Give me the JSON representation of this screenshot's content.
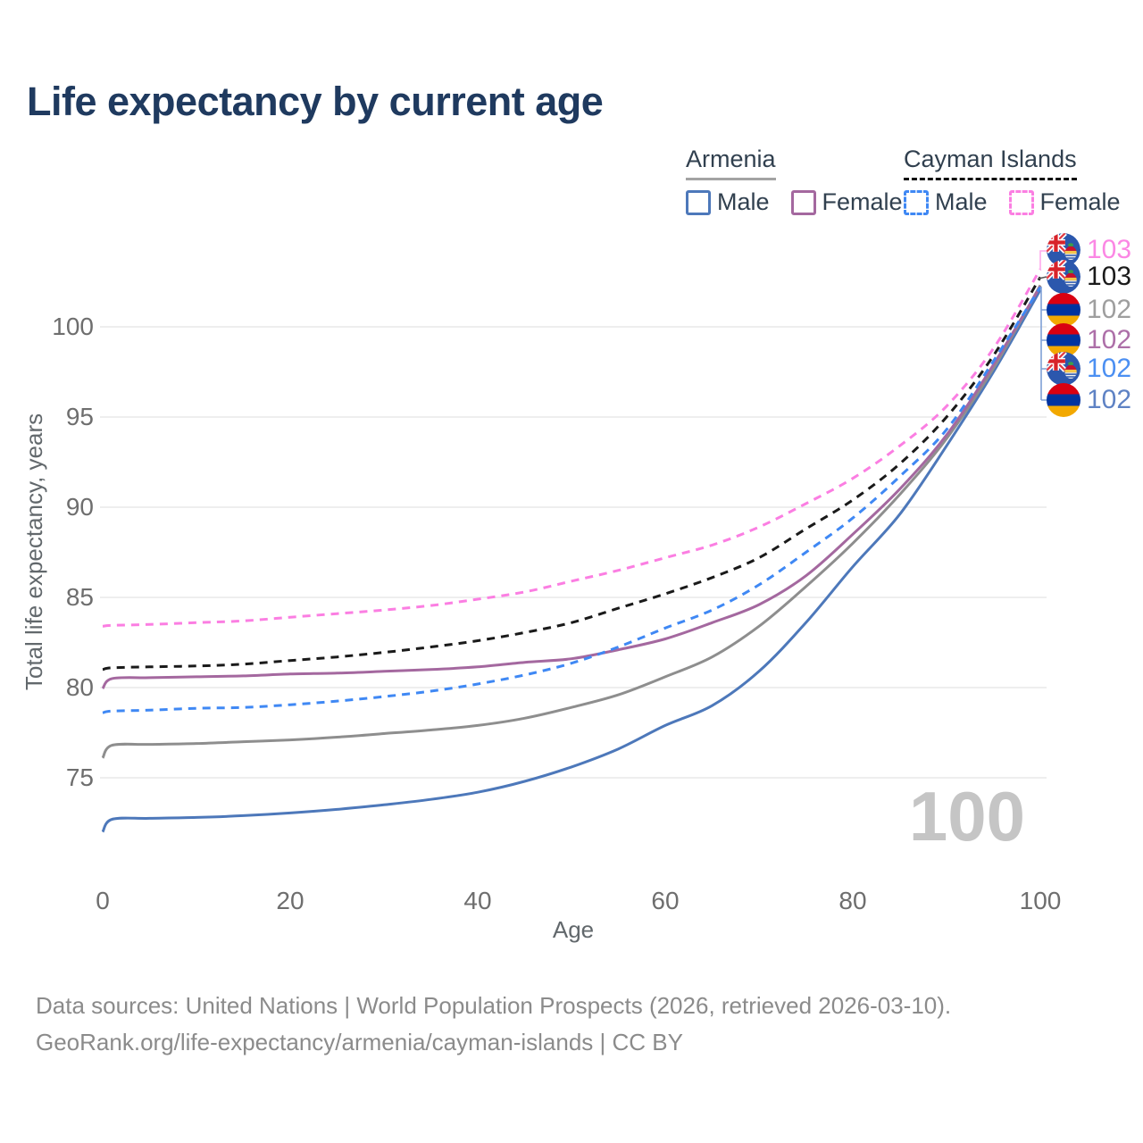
{
  "title": "Life expectancy by current age",
  "legend": {
    "groups": [
      {
        "name": "Armenia",
        "line_style": "solid",
        "underline_color": "#a3a3a3",
        "items": [
          {
            "label": "Male",
            "color": "#4d78ba",
            "dashed": false
          },
          {
            "label": "Female",
            "color": "#a4689f",
            "dashed": false
          }
        ]
      },
      {
        "name": "Cayman Islands",
        "line_style": "dashed",
        "underline_color": "#111111",
        "items": [
          {
            "label": "Male",
            "color": "#3f88f4",
            "dashed": true
          },
          {
            "label": "Female",
            "color": "#fb7ee2",
            "dashed": true
          }
        ]
      }
    ]
  },
  "chart_data": {
    "type": "line",
    "title": "Life expectancy by current age",
    "xlabel": "Age",
    "ylabel": "Total life expectancy, years",
    "x_ticks": [
      0,
      20,
      40,
      60,
      80,
      100
    ],
    "y_ticks": [
      75,
      80,
      85,
      90,
      95,
      100
    ],
    "xlim": [
      0,
      100
    ],
    "ylim": [
      75,
      100
    ],
    "grid": "horizontal",
    "x": [
      0,
      1,
      5,
      10,
      15,
      20,
      25,
      30,
      35,
      40,
      45,
      50,
      55,
      60,
      65,
      70,
      75,
      80,
      85,
      90,
      95,
      100
    ],
    "series": [
      {
        "name": "Armenia Male",
        "country": "Armenia",
        "sex": "male",
        "color": "#4d78ba",
        "dashed": false,
        "values": [
          72.0,
          72.7,
          72.75,
          72.8,
          72.9,
          73.05,
          73.25,
          73.5,
          73.8,
          74.2,
          74.8,
          75.6,
          76.6,
          77.9,
          79.0,
          80.9,
          83.6,
          86.7,
          89.6,
          93.4,
          97.5,
          102.05
        ]
      },
      {
        "name": "Armenia Both sexes",
        "country": "Armenia",
        "sex": "total",
        "color": "#8e8e8e",
        "dashed": false,
        "values": [
          76.1,
          76.8,
          76.85,
          76.9,
          77.0,
          77.1,
          77.25,
          77.45,
          77.65,
          77.9,
          78.3,
          78.9,
          79.6,
          80.6,
          81.7,
          83.4,
          85.6,
          88.0,
          90.7,
          93.8,
          97.7,
          102.3
        ]
      },
      {
        "name": "Armenia Female",
        "country": "Armenia",
        "sex": "female",
        "color": "#a4689f",
        "dashed": false,
        "values": [
          79.95,
          80.5,
          80.55,
          80.6,
          80.65,
          80.75,
          80.8,
          80.9,
          81.0,
          81.15,
          81.4,
          81.6,
          82.1,
          82.7,
          83.6,
          84.6,
          86.2,
          88.5,
          91.0,
          94.0,
          97.9,
          102.25
        ]
      },
      {
        "name": "Cayman Islands Male",
        "country": "Cayman Islands",
        "sex": "male",
        "color": "#3f88f4",
        "dashed": true,
        "values": [
          78.6,
          78.7,
          78.75,
          78.85,
          78.9,
          79.05,
          79.25,
          79.5,
          79.8,
          80.2,
          80.7,
          81.35,
          82.25,
          83.3,
          84.3,
          85.7,
          87.5,
          89.4,
          91.7,
          94.3,
          98.1,
          102.2
        ]
      },
      {
        "name": "Cayman Islands Both sexes",
        "country": "Cayman Islands",
        "sex": "total",
        "color": "#1a1a1a",
        "dashed": true,
        "values": [
          81.0,
          81.1,
          81.15,
          81.2,
          81.3,
          81.5,
          81.7,
          81.95,
          82.25,
          82.6,
          83.05,
          83.6,
          84.4,
          85.2,
          86.1,
          87.2,
          88.8,
          90.4,
          92.4,
          95.0,
          98.4,
          102.75
        ]
      },
      {
        "name": "Cayman Islands Female",
        "country": "Cayman Islands",
        "sex": "female",
        "color": "#fb7ee2",
        "dashed": true,
        "values": [
          83.4,
          83.45,
          83.5,
          83.6,
          83.7,
          83.9,
          84.1,
          84.3,
          84.55,
          84.9,
          85.3,
          85.9,
          86.5,
          87.2,
          87.9,
          88.9,
          90.2,
          91.6,
          93.4,
          95.6,
          98.8,
          103.2
        ]
      }
    ],
    "legend_position": "top-right"
  },
  "end_labels": [
    {
      "value": "103",
      "flag": "cayman",
      "color": "#fb87e4"
    },
    {
      "value": "103",
      "flag": "cayman",
      "color": "#1a1a1a"
    },
    {
      "value": "102",
      "flag": "armenia",
      "color": "#9e9e9e"
    },
    {
      "value": "102",
      "flag": "armenia",
      "color": "#ad6fa8"
    },
    {
      "value": "102",
      "flag": "cayman",
      "color": "#4b8ff2"
    },
    {
      "value": "102",
      "flag": "armenia",
      "color": "#5e82c4"
    }
  ],
  "icons": {
    "armenia_flag": "armenia-flag-icon",
    "cayman_flag": "cayman-islands-flag-icon"
  },
  "watermark_age": "100",
  "footer": {
    "line1": "Data sources: United Nations | World Population Prospects (2026, retrieved 2026-03-10).",
    "line2": "GeoRank.org/life-expectancy/armenia/cayman-islands | CC BY"
  },
  "colors": {
    "title_text": "#1f3a5f",
    "legend_text": "#31404f",
    "axis_text": "#6e6e6e",
    "grid": "#e9e9e9",
    "watermark": "#c5c5c5",
    "footer_text": "#8b8b8b"
  }
}
